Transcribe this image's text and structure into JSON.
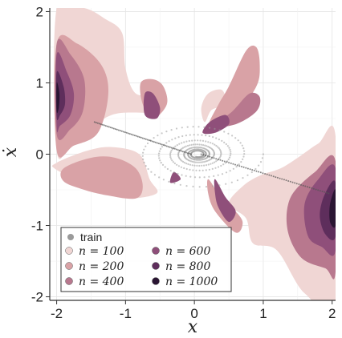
{
  "chart_data": {
    "type": "scatter",
    "title": "",
    "xlabel": "x",
    "ylabel": "ẋ",
    "xlim": [
      -2.1,
      2.05
    ],
    "ylim": [
      -2.05,
      2.05
    ],
    "xticks": [
      "-2",
      "-1",
      "0",
      "1",
      "2"
    ],
    "xtick_values": [
      -2,
      -1,
      0,
      1,
      2
    ],
    "yticks": [
      "-2",
      "-1",
      "0",
      "1",
      "2"
    ],
    "ytick_values": [
      -2,
      -1,
      0,
      1,
      2
    ],
    "grid": true,
    "legend_position": "bottom-left",
    "train_label": "train",
    "train_color": "#9a9a9a",
    "series": [
      {
        "name": "n = 100",
        "color": "#f0d6d4"
      },
      {
        "name": "n = 200",
        "color": "#d9a2a6"
      },
      {
        "name": "n = 400",
        "color": "#b8788e"
      },
      {
        "name": "n = 600",
        "color": "#8f4f7a"
      },
      {
        "name": "n = 800",
        "color": "#5e2e5c"
      },
      {
        "name": "n = 1000",
        "color": "#2a1533"
      }
    ],
    "regions": [
      {
        "series": 0,
        "points": [
          [
            -2.0,
            2.05
          ],
          [
            -1.6,
            2.05
          ],
          [
            -1.3,
            1.9
          ],
          [
            -1.05,
            1.7
          ],
          [
            -1.0,
            1.2
          ],
          [
            -0.85,
            0.85
          ],
          [
            -0.55,
            0.82
          ],
          [
            -0.6,
            0.6
          ],
          [
            -1.2,
            0.55
          ],
          [
            -1.75,
            0.2
          ],
          [
            -2.0,
            0.05
          ]
        ]
      },
      {
        "series": 0,
        "points": [
          [
            -2.0,
            -0.12
          ],
          [
            -1.55,
            0.05
          ],
          [
            -1.2,
            0.1
          ],
          [
            -0.8,
            0.0
          ],
          [
            -0.65,
            -0.35
          ],
          [
            -0.55,
            -0.55
          ],
          [
            -1.0,
            -0.62
          ],
          [
            -1.4,
            -0.5
          ],
          [
            -2.0,
            -0.22
          ]
        ]
      },
      {
        "series": 0,
        "points": [
          [
            1.25,
            -0.2
          ],
          [
            1.5,
            -0.05
          ],
          [
            1.8,
            0.15
          ],
          [
            2.05,
            0.25
          ],
          [
            2.05,
            -2.05
          ],
          [
            1.6,
            -1.95
          ],
          [
            1.2,
            -1.35
          ],
          [
            0.85,
            -1.25
          ],
          [
            0.75,
            -0.9
          ],
          [
            0.5,
            -0.7
          ],
          [
            0.7,
            -0.45
          ],
          [
            0.95,
            -0.3
          ]
        ]
      },
      {
        "series": 0,
        "points": [
          [
            0.15,
            0.45
          ],
          [
            0.25,
            0.62
          ],
          [
            0.45,
            0.7
          ],
          [
            0.4,
            0.9
          ],
          [
            0.2,
            0.85
          ],
          [
            0.1,
            0.65
          ]
        ]
      },
      {
        "series": 1,
        "points": [
          [
            -2.0,
            1.55
          ],
          [
            -1.7,
            1.55
          ],
          [
            -1.35,
            1.25
          ],
          [
            -1.25,
            0.85
          ],
          [
            -1.4,
            0.3
          ],
          [
            -1.75,
            0.12
          ],
          [
            -2.0,
            0.05
          ]
        ]
      },
      {
        "series": 1,
        "points": [
          [
            -1.9,
            -0.2
          ],
          [
            -1.5,
            -0.05
          ],
          [
            -1.15,
            -0.05
          ],
          [
            -0.85,
            -0.2
          ],
          [
            -0.75,
            -0.45
          ],
          [
            -0.85,
            -0.62
          ],
          [
            -1.25,
            -0.58
          ],
          [
            -1.6,
            -0.5
          ],
          [
            -1.9,
            -0.38
          ]
        ]
      },
      {
        "series": 1,
        "points": [
          [
            0.2,
            0.4
          ],
          [
            0.35,
            0.7
          ],
          [
            0.5,
            0.95
          ],
          [
            0.75,
            1.45
          ],
          [
            0.9,
            1.5
          ],
          [
            0.95,
            1.25
          ],
          [
            0.9,
            0.95
          ],
          [
            0.6,
            0.55
          ],
          [
            0.3,
            0.35
          ]
        ]
      },
      {
        "series": 1,
        "points": [
          [
            -0.6,
            0.5
          ],
          [
            -0.75,
            0.7
          ],
          [
            -0.78,
            1.0
          ],
          [
            -0.6,
            1.05
          ],
          [
            -0.45,
            0.95
          ],
          [
            -0.4,
            0.7
          ]
        ]
      },
      {
        "series": 1,
        "points": [
          [
            0.2,
            -0.35
          ],
          [
            0.35,
            -0.55
          ],
          [
            0.55,
            -0.75
          ],
          [
            0.7,
            -0.95
          ],
          [
            0.6,
            -1.1
          ],
          [
            0.3,
            -0.8
          ],
          [
            0.2,
            -0.55
          ]
        ]
      },
      {
        "series": 2,
        "points": [
          [
            -2.0,
            1.55
          ],
          [
            -1.8,
            1.4
          ],
          [
            -1.6,
            1.05
          ],
          [
            -1.62,
            0.6
          ],
          [
            -1.8,
            0.35
          ],
          [
            -2.0,
            0.28
          ]
        ]
      },
      {
        "series": 2,
        "points": [
          [
            0.3,
            0.4
          ],
          [
            0.55,
            0.6
          ],
          [
            0.8,
            0.85
          ],
          [
            0.95,
            0.8
          ],
          [
            0.9,
            0.6
          ],
          [
            0.6,
            0.42
          ]
        ]
      },
      {
        "series": 2,
        "points": [
          [
            2.05,
            -0.1
          ],
          [
            1.75,
            -0.25
          ],
          [
            1.4,
            -0.6
          ],
          [
            1.35,
            -1.05
          ],
          [
            1.55,
            -1.45
          ],
          [
            1.9,
            -1.6
          ],
          [
            2.05,
            -1.65
          ]
        ]
      },
      {
        "series": 3,
        "points": [
          [
            -2.0,
            1.4
          ],
          [
            -1.85,
            1.15
          ],
          [
            -1.75,
            0.85
          ],
          [
            -1.8,
            0.55
          ],
          [
            -1.95,
            0.4
          ],
          [
            -2.0,
            0.38
          ]
        ]
      },
      {
        "series": 3,
        "points": [
          [
            -0.72,
            0.55
          ],
          [
            -0.72,
            0.85
          ],
          [
            -0.6,
            0.85
          ],
          [
            -0.5,
            0.65
          ],
          [
            -0.55,
            0.5
          ]
        ]
      },
      {
        "series": 3,
        "points": [
          [
            0.12,
            0.3
          ],
          [
            0.22,
            0.45
          ],
          [
            0.45,
            0.55
          ],
          [
            0.5,
            0.42
          ],
          [
            0.3,
            0.3
          ]
        ]
      },
      {
        "series": 3,
        "points": [
          [
            0.3,
            -0.35
          ],
          [
            0.45,
            -0.6
          ],
          [
            0.6,
            -0.8
          ],
          [
            0.5,
            -0.95
          ],
          [
            0.35,
            -0.75
          ],
          [
            0.3,
            -0.55
          ]
        ]
      },
      {
        "series": 3,
        "points": [
          [
            -0.3,
            -0.25
          ],
          [
            -0.35,
            -0.4
          ],
          [
            -0.2,
            -0.35
          ]
        ]
      },
      {
        "series": 3,
        "points": [
          [
            2.05,
            -0.2
          ],
          [
            1.8,
            -0.35
          ],
          [
            1.6,
            -0.7
          ],
          [
            1.65,
            -1.15
          ],
          [
            1.85,
            -1.3
          ],
          [
            2.05,
            -1.35
          ]
        ]
      },
      {
        "series": 4,
        "points": [
          [
            -2.0,
            1.15
          ],
          [
            -1.9,
            0.95
          ],
          [
            -1.88,
            0.7
          ],
          [
            -1.95,
            0.55
          ],
          [
            -2.0,
            0.52
          ]
        ]
      },
      {
        "series": 4,
        "points": [
          [
            2.05,
            -0.4
          ],
          [
            1.9,
            -0.55
          ],
          [
            1.82,
            -0.85
          ],
          [
            1.9,
            -1.12
          ],
          [
            2.05,
            -1.15
          ]
        ]
      },
      {
        "series": 5,
        "points": [
          [
            -2.0,
            1.0
          ],
          [
            -1.96,
            0.85
          ],
          [
            -1.97,
            0.65
          ],
          [
            -2.0,
            0.6
          ]
        ]
      },
      {
        "series": 5,
        "points": [
          [
            2.05,
            -0.5
          ],
          [
            1.97,
            -0.7
          ],
          [
            1.97,
            -0.95
          ],
          [
            2.05,
            -1.0
          ]
        ]
      }
    ]
  }
}
